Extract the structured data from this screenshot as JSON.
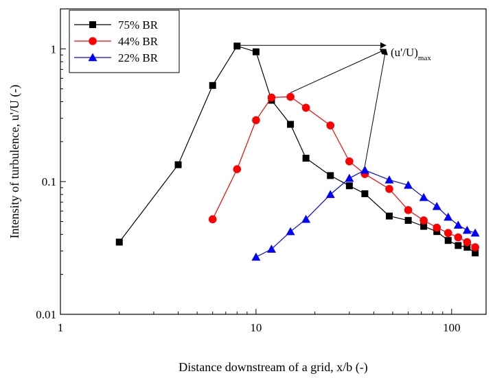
{
  "chart_data": {
    "type": "line",
    "xlabel": "Distance downstream of a grid, x/b (-)",
    "ylabel": "Intensity of turbulence, u'/U (-)",
    "xscale": "log",
    "yscale": "log",
    "xlim": [
      1,
      150
    ],
    "ylim": [
      0.01,
      2
    ],
    "x_ticks": [
      "1",
      "10",
      "100"
    ],
    "y_ticks": [
      "0.01",
      "0.1",
      "1"
    ],
    "grid": false,
    "legend_position": "top-left",
    "series": [
      {
        "name": "75% BR",
        "color": "#000000",
        "marker": "square",
        "points": [
          [
            2,
            0.035
          ],
          [
            4,
            0.134
          ],
          [
            6,
            0.53
          ],
          [
            8,
            1.05
          ],
          [
            10,
            0.95
          ],
          [
            12,
            0.41
          ],
          [
            15,
            0.27
          ],
          [
            18,
            0.15
          ],
          [
            24,
            0.111
          ],
          [
            30,
            0.093
          ],
          [
            36,
            0.081
          ],
          [
            48,
            0.055
          ],
          [
            60,
            0.051
          ],
          [
            72,
            0.046
          ],
          [
            84,
            0.042
          ],
          [
            96,
            0.036
          ],
          [
            108,
            0.033
          ],
          [
            120,
            0.032
          ],
          [
            132,
            0.029
          ]
        ]
      },
      {
        "name": "44% BR",
        "color": "#ff0000",
        "marker": "circle",
        "points": [
          [
            6,
            0.052
          ],
          [
            8,
            0.124
          ],
          [
            10,
            0.29
          ],
          [
            12,
            0.43
          ],
          [
            15,
            0.435
          ],
          [
            18,
            0.36
          ],
          [
            24,
            0.265
          ],
          [
            30,
            0.142
          ],
          [
            36,
            0.114
          ],
          [
            48,
            0.088
          ],
          [
            60,
            0.061
          ],
          [
            72,
            0.051
          ],
          [
            84,
            0.045
          ],
          [
            96,
            0.041
          ],
          [
            108,
            0.038
          ],
          [
            120,
            0.035
          ],
          [
            132,
            0.032
          ]
        ]
      },
      {
        "name": "22% BR",
        "color": "#0000ff",
        "marker": "triangle",
        "points": [
          [
            10,
            0.027
          ],
          [
            12,
            0.031
          ],
          [
            15,
            0.042
          ],
          [
            18,
            0.052
          ],
          [
            24,
            0.08
          ],
          [
            30,
            0.106
          ],
          [
            36,
            0.122
          ],
          [
            48,
            0.103
          ],
          [
            60,
            0.094
          ],
          [
            72,
            0.076
          ],
          [
            84,
            0.065
          ],
          [
            96,
            0.054
          ],
          [
            108,
            0.047
          ],
          [
            120,
            0.043
          ],
          [
            132,
            0.041
          ]
        ]
      }
    ],
    "annotation": {
      "text": "(u'/U)",
      "subscript": "max"
    }
  }
}
